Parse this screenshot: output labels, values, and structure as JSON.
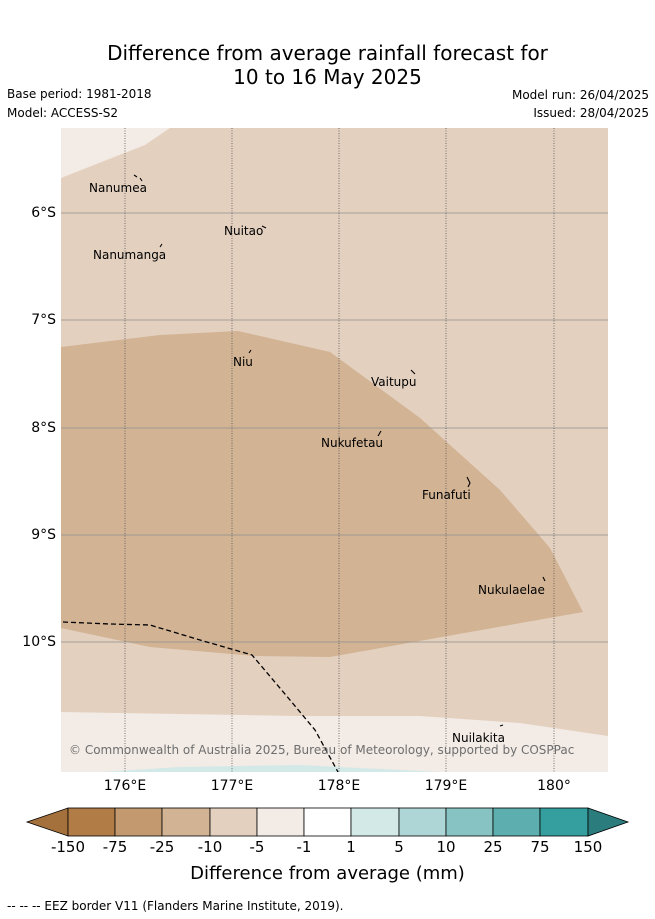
{
  "title": {
    "line1": "Difference from average rainfall forecast for",
    "line2": "10 to 16 May 2025"
  },
  "meta": {
    "base_period": "Base period: 1981-2018",
    "model": "Model: ACCESS-S2",
    "model_run": "Model run: 26/04/2025",
    "issued": "Issued: 28/04/2025"
  },
  "map": {
    "latitude_labels": [
      "6°S",
      "7°S",
      "8°S",
      "9°S",
      "10°S"
    ],
    "longitude_labels": [
      "176°E",
      "177°E",
      "178°E",
      "179°E",
      "180°"
    ],
    "islands": [
      {
        "name": "Nanumea"
      },
      {
        "name": "Nuitao"
      },
      {
        "name": "Nanumanga"
      },
      {
        "name": "Niu"
      },
      {
        "name": "Vaitupu"
      },
      {
        "name": "Nukufetau"
      },
      {
        "name": "Funafuti"
      },
      {
        "name": "Nukulaelae"
      },
      {
        "name": "Nuilakita"
      }
    ],
    "copyright": "© Commonwealth of Australia 2025, Bureau of Meteorology, supported by COSPPac",
    "colors": {
      "dry_-5_to_-1": "#f3ebe5",
      "dry_-10_to_-5": "#e3d0bf",
      "dry_-25_to_-10": "#d2b394",
      "wet_1_to_5": "#d3e9e8"
    }
  },
  "colorbar": {
    "labels": [
      "-150",
      "-75",
      "-25",
      "-10",
      "-5",
      "-1",
      "1",
      "5",
      "10",
      "25",
      "75",
      "150"
    ],
    "colors": [
      "#a4703b",
      "#b27c47",
      "#c39a70",
      "#d2b394",
      "#e3d0bf",
      "#f3ebe5",
      "#ffffff",
      "#d3e9e8",
      "#aed6d6",
      "#88c3c3",
      "#5daeae",
      "#359e9e",
      "#2b7c7c"
    ],
    "title": "Difference from average (mm)"
  },
  "footer": {
    "text": "--  --  -- EEZ border V11 (Flanders Marine Institute, 2019)."
  }
}
